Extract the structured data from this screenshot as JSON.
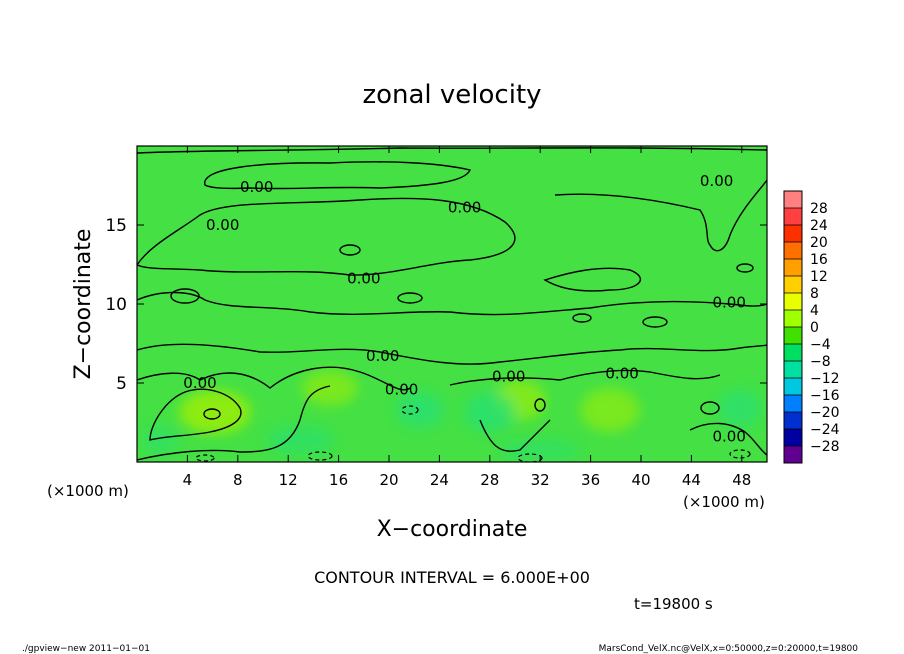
{
  "chart_data": {
    "type": "heatmap",
    "title": "zonal velocity",
    "xlabel": "X−coordinate",
    "ylabel": "Z−coordinate",
    "x_units": "(×1000 m)",
    "x_units_right": "(×1000 m)",
    "xlim": [
      0,
      50
    ],
    "ylim": [
      0,
      20
    ],
    "x_ticks": [
      "4",
      "8",
      "12",
      "16",
      "20",
      "24",
      "28",
      "32",
      "36",
      "40",
      "44",
      "48"
    ],
    "x_tick_values": [
      4,
      8,
      12,
      16,
      20,
      24,
      28,
      32,
      36,
      40,
      44,
      48
    ],
    "y_ticks": [
      "5",
      "10",
      "15"
    ],
    "y_tick_values": [
      5,
      10,
      15
    ],
    "contour_labels": [
      {
        "text": "0.00",
        "x": 9.5,
        "y": 17.4
      },
      {
        "text": "0.00",
        "x": 26.0,
        "y": 16.1
      },
      {
        "text": "0.00",
        "x": 46.0,
        "y": 17.8
      },
      {
        "text": "0.00",
        "x": 6.8,
        "y": 15.0
      },
      {
        "text": "0.00",
        "x": 18.0,
        "y": 11.6
      },
      {
        "text": "0.00",
        "x": 47.0,
        "y": 10.1
      },
      {
        "text": "0.00",
        "x": 19.5,
        "y": 6.7
      },
      {
        "text": "0.00",
        "x": 21.0,
        "y": 4.6
      },
      {
        "text": "0.00",
        "x": 29.5,
        "y": 5.4
      },
      {
        "text": "0.00",
        "x": 38.5,
        "y": 5.6
      },
      {
        "text": "0.00",
        "x": 5.0,
        "y": 5.0
      },
      {
        "text": "0.00",
        "x": 47.0,
        "y": 1.6
      }
    ],
    "colorbar": {
      "levels": [
        "28",
        "24",
        "20",
        "16",
        "12",
        "8",
        "4",
        "0",
        "−4",
        "−8",
        "−12",
        "−16",
        "−20",
        "−24",
        "−28"
      ],
      "colors": [
        "#ff8080",
        "#ff4040",
        "#ff3000",
        "#ff7000",
        "#ffa000",
        "#ffd000",
        "#e8ff00",
        "#a0ff00",
        "#40e000",
        "#00e060",
        "#00e0a0",
        "#00c8e0",
        "#0080ff",
        "#0030d0",
        "#0000a0",
        "#600090"
      ]
    },
    "background_color": "#44e044"
  },
  "annotations": {
    "contour_interval": "CONTOUR INTERVAL = 6.000E+00",
    "time": "t=19800 s",
    "footer_left": "./gpview−new   2011−01−01",
    "footer_right": "MarsCond_VelX.nc@VelX,x=0:50000,z=0:20000,t=19800"
  }
}
